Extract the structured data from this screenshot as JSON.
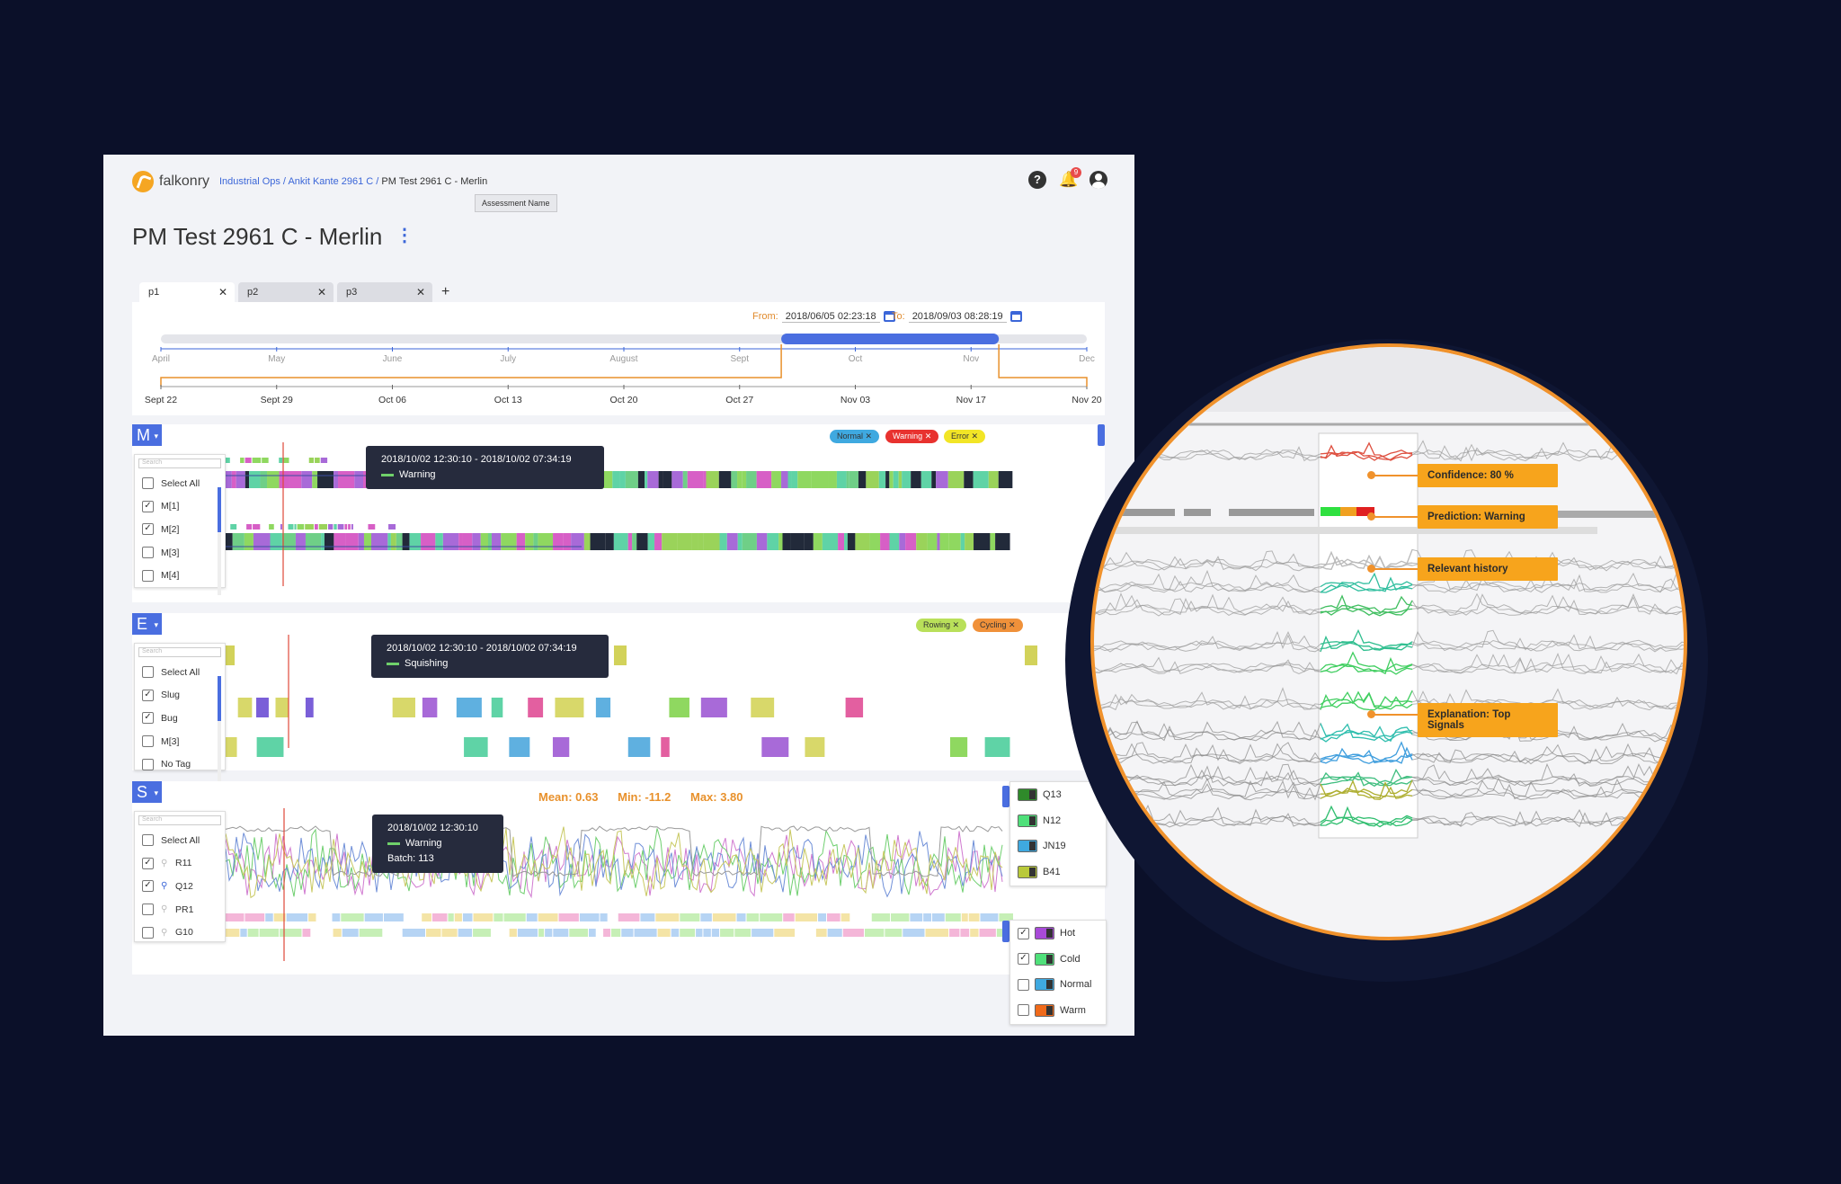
{
  "app": {
    "brand": "falkonry",
    "breadcrumb": {
      "part1": "Industrial Ops /",
      "part2": "Ankit Kante 2961 C /",
      "current": "PM Test 2961 C - Merlin"
    },
    "assessment_tooltip": "Assessment Name",
    "title": "PM Test 2961 C - Merlin",
    "notifications_count": "9",
    "help_glyph": "?"
  },
  "tabs": [
    {
      "label": "p1",
      "active": true
    },
    {
      "label": "p2",
      "active": false
    },
    {
      "label": "p3",
      "active": false
    }
  ],
  "tab_add": "+",
  "range": {
    "from_label": "From:",
    "from_value": "2018/06/05 02:23:18",
    "to_label": "To:",
    "to_value": "2018/09/03 08:28:19",
    "months": [
      "April",
      "May",
      "June",
      "July",
      "August",
      "Sept",
      "Oct",
      "Nov",
      "Dec"
    ],
    "days": [
      "Sept 22",
      "Sept 29",
      "Oct 06",
      "Oct 13",
      "Oct 20",
      "Oct 27",
      "Nov 03",
      "Nov 17",
      "Nov 20"
    ],
    "selected_fraction": [
      0.67,
      0.905
    ]
  },
  "model_section": {
    "button": "M",
    "search_placeholder": "Search",
    "items": [
      {
        "label": "Select All",
        "checked": false
      },
      {
        "label": "M[1]",
        "checked": true
      },
      {
        "label": "M[2]",
        "checked": true
      },
      {
        "label": "M[3]",
        "checked": false
      },
      {
        "label": "M[4]",
        "checked": false
      }
    ],
    "chips": [
      {
        "label": "Normal",
        "color": "#3fa9e0"
      },
      {
        "label": "Warning",
        "color": "#e8322f"
      },
      {
        "label": "Error",
        "color": "#f2e526"
      }
    ],
    "tooltip": {
      "range": "2018/10/02 12:30:10 - 2018/10/02 07:34:19",
      "state": "Warning"
    }
  },
  "event_section": {
    "button": "E",
    "search_placeholder": "Search",
    "items": [
      {
        "label": "Select All",
        "checked": false
      },
      {
        "label": "Slug",
        "checked": true
      },
      {
        "label": "Bug",
        "checked": true
      },
      {
        "label": "M[3]",
        "checked": false
      },
      {
        "label": "No Tag",
        "checked": false
      }
    ],
    "chips": [
      {
        "label": "Rowing",
        "color": "#b9e05a"
      },
      {
        "label": "Cycling",
        "color": "#f0913a"
      }
    ],
    "tooltip": {
      "range": "2018/10/02 12:30:10 - 2018/10/02 07:34:19",
      "state": "Squishing"
    }
  },
  "signal_section": {
    "button": "S",
    "search_placeholder": "Search",
    "stats": {
      "mean": "Mean: 0.63",
      "min": "Min: -11.2",
      "max": "Max: 3.80"
    },
    "items": [
      {
        "label": "Select All",
        "checked": false,
        "pin": false
      },
      {
        "label": "R11",
        "checked": true,
        "pin": false
      },
      {
        "label": "Q12",
        "checked": true,
        "pin": true
      },
      {
        "label": "PR1",
        "checked": false,
        "pin": false
      },
      {
        "label": "G10",
        "checked": false,
        "pin": false
      }
    ],
    "tooltip": {
      "time": "2018/10/02 12:30:10",
      "state": "Warning",
      "batch": "Batch: 113"
    },
    "signal_legend": [
      {
        "label": "Q13",
        "color": "#2f8a2a"
      },
      {
        "label": "N12",
        "color": "#4fe07a"
      },
      {
        "label": "JN19",
        "color": "#3fa9e0"
      },
      {
        "label": "B41",
        "color": "#b9c93a"
      }
    ],
    "condition_legend": [
      {
        "label": "Hot",
        "color": "#a84ad8",
        "checked": true
      },
      {
        "label": "Cold",
        "color": "#4fe07a",
        "checked": true
      },
      {
        "label": "Normal",
        "color": "#3fa9e0",
        "checked": false
      },
      {
        "label": "Warm",
        "color": "#f06a1a",
        "checked": false
      }
    ]
  },
  "zoom": {
    "callouts": [
      "Confidence: 80 %",
      "Prediction: Warning",
      "Relevant history",
      "Explanation: Top Signals"
    ]
  }
}
